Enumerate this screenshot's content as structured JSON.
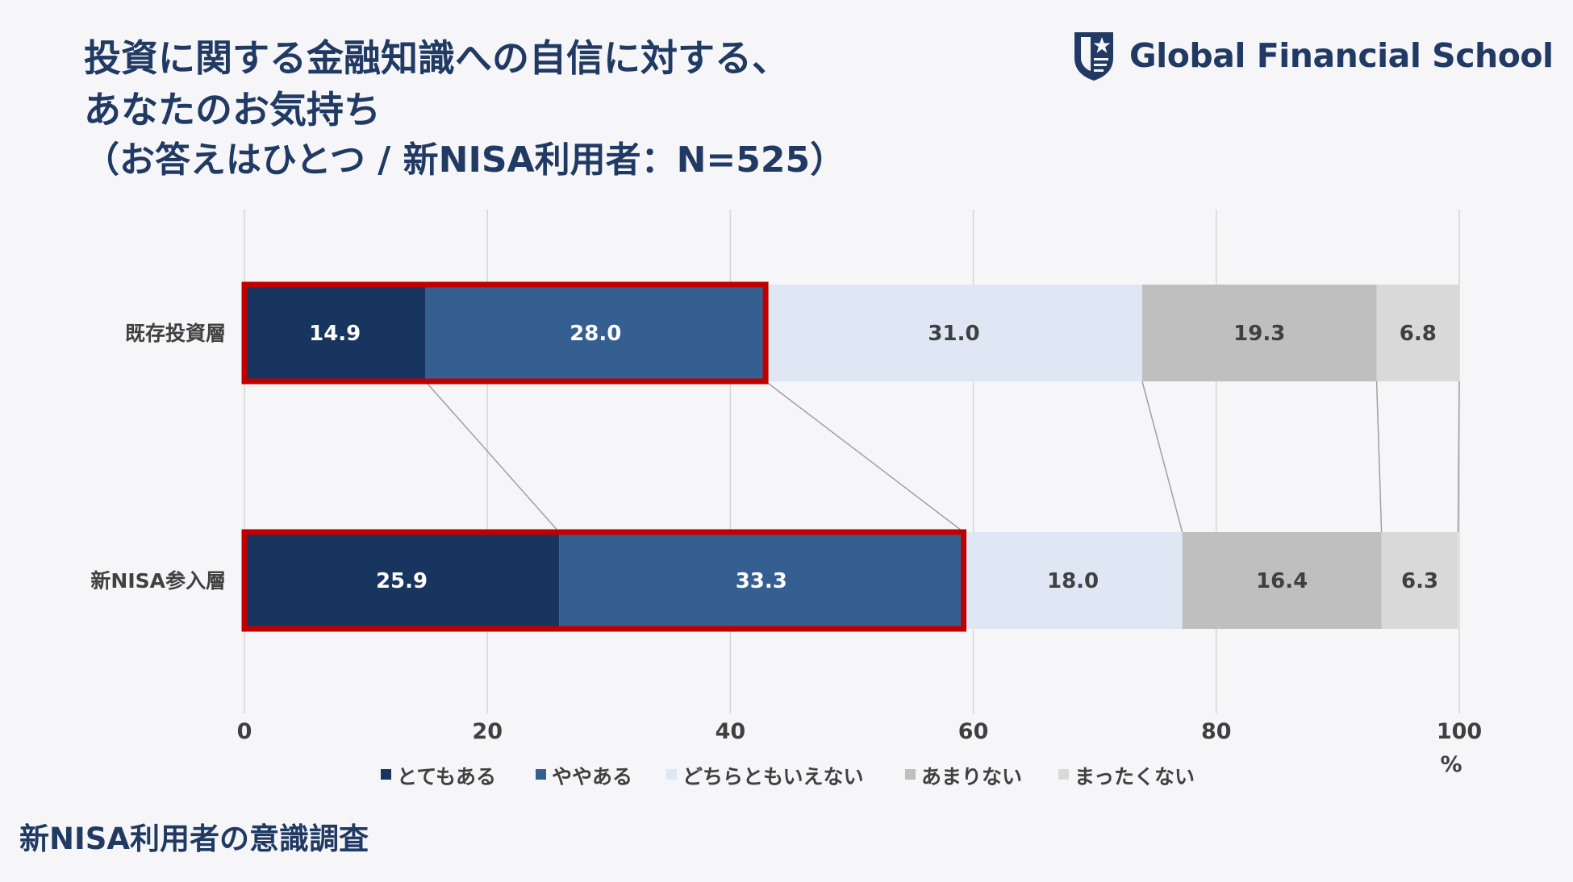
{
  "title": {
    "line1": "投資に関する金融知識への自信に対する、",
    "line2": "あなたのお気持ち",
    "line3": "（お答えはひとつ / 新NISA利用者：N=525）"
  },
  "logo": {
    "text": "Global Financial School",
    "icon": "shield-star-icon"
  },
  "footer": "新NISA利用者の意識調査",
  "colors": {
    "title": "#213a63",
    "series": [
      "#17355e",
      "#355f91",
      "#dee7f3",
      "#bfbfbf",
      "#d9d9d9"
    ],
    "highlight": "#c00000"
  },
  "chart_data": {
    "type": "bar",
    "orientation": "horizontal",
    "stacked": true,
    "categories": [
      "既存投資層",
      "新NISA参入層"
    ],
    "series": [
      {
        "name": "とてもある",
        "values": [
          14.9,
          25.9
        ]
      },
      {
        "name": "ややある",
        "values": [
          28.0,
          33.3
        ]
      },
      {
        "name": "どちらともいえない",
        "values": [
          31.0,
          18.0
        ]
      },
      {
        "name": "あまりない",
        "values": [
          19.3,
          16.4
        ]
      },
      {
        "name": "まったくない",
        "values": [
          6.8,
          6.3
        ]
      }
    ],
    "xlim": [
      0,
      100
    ],
    "xticks": [
      "0",
      "20",
      "40",
      "60",
      "80",
      "100"
    ],
    "xunit": "%",
    "grid": true,
    "legend_position": "bottom",
    "highlight_series_count": 2
  }
}
